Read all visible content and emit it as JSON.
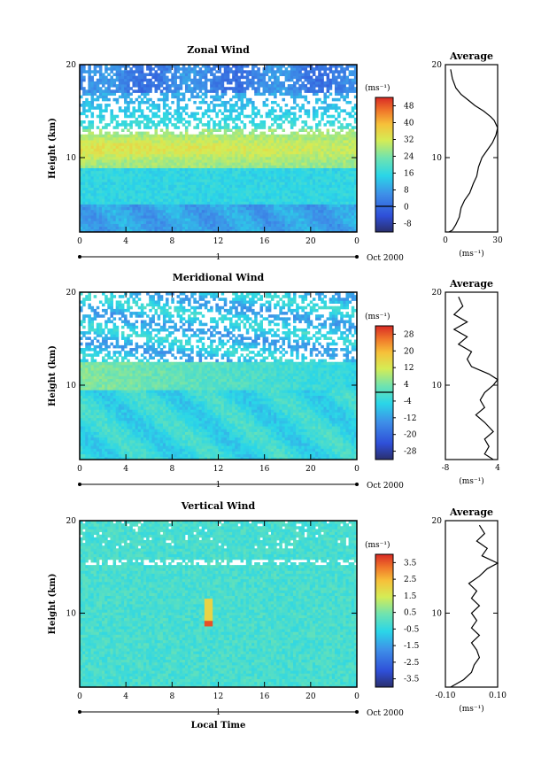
{
  "chart_data": [
    {
      "type": "heatmap",
      "title": "Zonal Wind",
      "ylabel": "Height (km)",
      "xlabel": "",
      "x_ticks": [
        "0",
        "4",
        "8",
        "12",
        "16",
        "20",
        "0"
      ],
      "day_label": "1",
      "month_label": "Oct 2000",
      "y_ticks": [
        "20",
        "10"
      ],
      "ylim": [
        2,
        20
      ],
      "xlim": [
        0,
        24
      ],
      "colorbar": {
        "unit": "(ms⁻¹)",
        "ticks": [
          "48",
          "40",
          "32",
          "24",
          "16",
          "8",
          "0",
          "-8"
        ],
        "range": [
          -8,
          52
        ]
      },
      "profile": {
        "title": "Average",
        "unit": "(ms⁻¹)",
        "x_ticks": [
          "0",
          "30"
        ],
        "y_ticks": [
          "20",
          "10"
        ],
        "xlim": [
          0,
          30
        ],
        "points": [
          [
            3,
            19.5
          ],
          [
            4,
            18.5
          ],
          [
            6,
            17.5
          ],
          [
            9,
            16.8
          ],
          [
            13,
            16.2
          ],
          [
            17,
            15.6
          ],
          [
            22,
            15
          ],
          [
            26,
            14.4
          ],
          [
            28,
            14
          ],
          [
            30,
            13.2
          ],
          [
            29,
            12.4
          ],
          [
            27,
            11.6
          ],
          [
            24,
            10.8
          ],
          [
            21,
            10
          ],
          [
            19,
            9
          ],
          [
            18,
            8
          ],
          [
            16,
            7.2
          ],
          [
            14,
            6.2
          ],
          [
            11,
            5.4
          ],
          [
            9,
            4.6
          ],
          [
            8,
            3.6
          ],
          [
            6,
            2.8
          ],
          [
            4,
            2.2
          ],
          [
            2,
            2
          ]
        ]
      },
      "grid": false
    },
    {
      "type": "heatmap",
      "title": "Meridional Wind",
      "ylabel": "Height (km)",
      "xlabel": "",
      "x_ticks": [
        "0",
        "4",
        "8",
        "12",
        "16",
        "20",
        "0"
      ],
      "day_label": "1",
      "month_label": "Oct 2000",
      "y_ticks": [
        "20",
        "10"
      ],
      "ylim": [
        2,
        20
      ],
      "xlim": [
        0,
        24
      ],
      "colorbar": {
        "unit": "(ms⁻¹)",
        "ticks": [
          "28",
          "20",
          "12",
          "4",
          "-4",
          "-12",
          "-20",
          "-28"
        ],
        "range": [
          -30,
          30
        ]
      },
      "profile": {
        "title": "Average",
        "unit": "(ms⁻¹)",
        "x_ticks": [
          "-8",
          "4"
        ],
        "y_ticks": [
          "20",
          "10"
        ],
        "xlim": [
          -8,
          4
        ],
        "points": [
          [
            -5,
            19.5
          ],
          [
            -4,
            18.5
          ],
          [
            -6,
            17.6
          ],
          [
            -3,
            16.8
          ],
          [
            -6,
            16
          ],
          [
            -3,
            15.2
          ],
          [
            -5,
            14.4
          ],
          [
            -2,
            13.6
          ],
          [
            -3,
            12.8
          ],
          [
            -2,
            12
          ],
          [
            2,
            11.2
          ],
          [
            4,
            10.6
          ],
          [
            3,
            10
          ],
          [
            1,
            9.2
          ],
          [
            0,
            8.4
          ],
          [
            1,
            7.6
          ],
          [
            -1,
            6.8
          ],
          [
            1,
            6
          ],
          [
            3,
            5
          ],
          [
            1,
            4.2
          ],
          [
            2,
            3.4
          ],
          [
            1,
            2.6
          ],
          [
            3,
            2
          ]
        ]
      },
      "grid": false
    },
    {
      "type": "heatmap",
      "title": "Vertical Wind",
      "ylabel": "Height (km)",
      "xlabel": "Local Time",
      "x_ticks": [
        "0",
        "4",
        "8",
        "12",
        "16",
        "20",
        "0"
      ],
      "day_label": "1",
      "month_label": "Oct 2000",
      "y_ticks": [
        "20",
        "10"
      ],
      "ylim": [
        2,
        20
      ],
      "xlim": [
        0,
        24
      ],
      "colorbar": {
        "unit": "(ms⁻¹)",
        "ticks": [
          "3.5",
          "2.5",
          "1.5",
          "0.5",
          "-0.5",
          "-1.5",
          "-2.5",
          "-3.5"
        ],
        "range": [
          -4,
          4
        ]
      },
      "profile": {
        "title": "Average",
        "unit": "(ms⁻¹)",
        "x_ticks": [
          "-0.10",
          "0.10"
        ],
        "y_ticks": [
          "20",
          "10"
        ],
        "xlim": [
          -0.1,
          0.1
        ],
        "points": [
          [
            0.03,
            19.5
          ],
          [
            0.05,
            18.6
          ],
          [
            0.02,
            17.8
          ],
          [
            0.06,
            17
          ],
          [
            0.04,
            16.2
          ],
          [
            0.1,
            15.4
          ],
          [
            0.06,
            14.8
          ],
          [
            0.03,
            14
          ],
          [
            -0.01,
            13.2
          ],
          [
            0.02,
            12.4
          ],
          [
            0,
            11.6
          ],
          [
            0.03,
            10.8
          ],
          [
            0,
            10
          ],
          [
            0.02,
            9.2
          ],
          [
            0,
            8.4
          ],
          [
            0.03,
            7.6
          ],
          [
            0,
            6.8
          ],
          [
            0.02,
            6
          ],
          [
            0.03,
            5.2
          ],
          [
            0.01,
            4.4
          ],
          [
            0,
            3.6
          ],
          [
            -0.03,
            2.8
          ],
          [
            -0.08,
            2
          ]
        ]
      },
      "grid": false
    }
  ]
}
